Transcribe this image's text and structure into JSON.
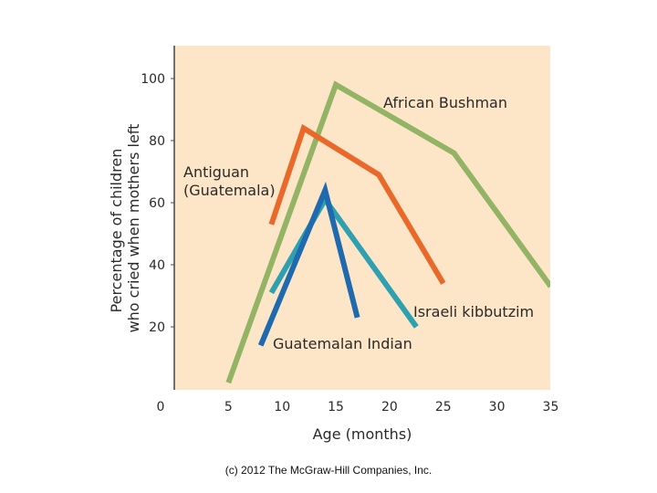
{
  "chart_data": {
    "type": "line",
    "xlabel": "Age (months)",
    "ylabel": [
      "Percentage of children",
      "who cried when mothers left"
    ],
    "xlim": [
      0,
      35
    ],
    "ylim": [
      0,
      110
    ],
    "x_ticks": [
      0,
      5,
      10,
      15,
      20,
      25,
      30,
      35
    ],
    "y_ticks": [
      20,
      40,
      60,
      80,
      100
    ],
    "grid": false,
    "background_color": "#FCE6C7",
    "series": [
      {
        "name": "African Bushman",
        "color": "#93B365",
        "points": [
          [
            5,
            2
          ],
          [
            15,
            98
          ],
          [
            26,
            76
          ],
          [
            35,
            33
          ]
        ]
      },
      {
        "name": "Antiguan (Guatemala)",
        "color": "#E8692A",
        "points": [
          [
            9,
            53
          ],
          [
            12,
            84
          ],
          [
            19,
            69
          ],
          [
            25,
            34
          ]
        ]
      },
      {
        "name": "Israeli kibbutzim",
        "color": "#2FA0AF",
        "points": [
          [
            9,
            31
          ],
          [
            14,
            61
          ],
          [
            22.5,
            20
          ]
        ]
      },
      {
        "name": "Guatemalan Indian",
        "color": "#1F6AAE",
        "points": [
          [
            8,
            14
          ],
          [
            14,
            64
          ],
          [
            17,
            23
          ]
        ]
      }
    ]
  },
  "footer": {
    "copyright": "(c) 2012 The McGraw-Hill Companies, Inc."
  }
}
